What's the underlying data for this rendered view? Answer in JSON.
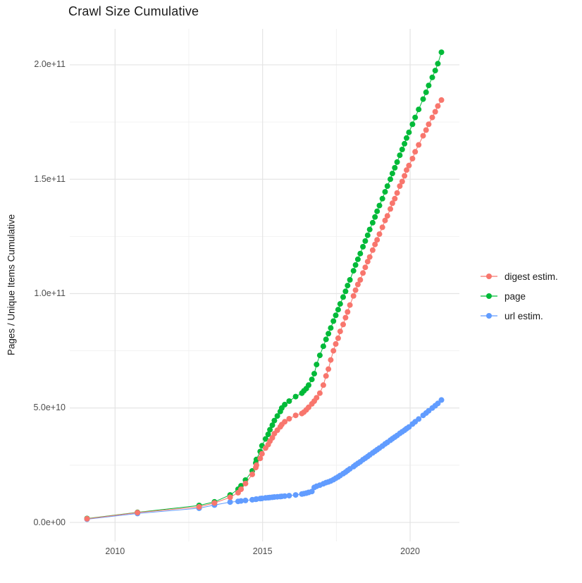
{
  "page": {
    "background": "#FFFFFF"
  },
  "chart_data": {
    "type": "scatter",
    "title": "Crawl Size Cumulative",
    "ylabel": "Pages / Unique Items Cumulative",
    "xlabel": "",
    "legend_position": "right",
    "grid": "on",
    "x_unit": "year (decimal)",
    "value_unit": "billions (1e9) of pages / unique items",
    "x_range": [
      2008.465,
      2021.67
    ],
    "y_range": [
      -8.3,
      215.7
    ],
    "x_ticks": [
      {
        "value": 2010,
        "label": "2010"
      },
      {
        "value": 2015,
        "label": "2015"
      },
      {
        "value": 2020,
        "label": "2020"
      }
    ],
    "x_minor_gridlines": [
      2012.5,
      2017.5
    ],
    "y_ticks": [
      {
        "value": 0,
        "label": "0.0e+00"
      },
      {
        "value": 50,
        "label": "5.0e+10"
      },
      {
        "value": 100,
        "label": "1.0e+11"
      },
      {
        "value": 150,
        "label": "1.5e+11"
      },
      {
        "value": 200,
        "label": "2.0e+11"
      }
    ],
    "y_minor_gridlines": [
      25,
      75,
      125,
      175
    ],
    "x": [
      2009.05,
      2010.76,
      2012.85,
      2013.37,
      2013.9,
      2014.17,
      2014.27,
      2014.42,
      2014.65,
      2014.77,
      2014.79,
      2014.92,
      2014.98,
      2015.1,
      2015.19,
      2015.25,
      2015.33,
      2015.4,
      2015.5,
      2015.6,
      2015.65,
      2015.75,
      2015.9,
      2016.12,
      2016.33,
      2016.4,
      2016.48,
      2016.56,
      2016.67,
      2016.75,
      2016.83,
      2016.94,
      2017.06,
      2017.15,
      2017.23,
      2017.31,
      2017.4,
      2017.48,
      2017.56,
      2017.63,
      2017.73,
      2017.81,
      2017.88,
      2017.96,
      2018.08,
      2018.15,
      2018.23,
      2018.31,
      2018.4,
      2018.48,
      2018.56,
      2018.63,
      2018.73,
      2018.81,
      2018.88,
      2018.96,
      2019.06,
      2019.15,
      2019.23,
      2019.33,
      2019.4,
      2019.48,
      2019.56,
      2019.65,
      2019.73,
      2019.81,
      2019.88,
      2019.96,
      2020.08,
      2020.17,
      2020.29,
      2020.44,
      2020.54,
      2020.63,
      2020.75,
      2020.85,
      2020.94,
      2021.06
    ],
    "series": [
      {
        "name": "digest estim.",
        "color": "#F8766D",
        "values": [
          1.6,
          4.3,
          6.8,
          8.5,
          11.0,
          13.0,
          14.5,
          17.0,
          21.0,
          24.0,
          25.0,
          28.0,
          30.0,
          32.5,
          34.0,
          35.5,
          37.0,
          38.8,
          40.3,
          41.8,
          42.8,
          44.0,
          45.3,
          46.8,
          47.6,
          48.2,
          49.2,
          50.3,
          51.8,
          53.0,
          54.5,
          56.5,
          60.0,
          64.0,
          67.0,
          71.0,
          75.0,
          78.0,
          80.5,
          83.5,
          86.5,
          89.5,
          92.0,
          95.0,
          99.0,
          101.5,
          104.0,
          106.0,
          109.0,
          111.5,
          114.0,
          116.0,
          119.0,
          121.5,
          123.5,
          126.0,
          129.0,
          132.0,
          134.0,
          137.0,
          139.5,
          141.5,
          144.0,
          147.0,
          149.0,
          151.5,
          154.0,
          156.0,
          159.0,
          162.0,
          165.0,
          169.0,
          171.5,
          174.0,
          177.0,
          179.5,
          182.0,
          184.6
        ]
      },
      {
        "name": "page",
        "color": "#00BA38",
        "values": [
          1.7,
          4.4,
          7.4,
          9.0,
          12.0,
          14.5,
          16.0,
          18.5,
          22.5,
          26.0,
          27.5,
          31.0,
          33.5,
          36.5,
          38.5,
          40.5,
          42.5,
          44.5,
          46.5,
          48.5,
          50.0,
          51.5,
          53.0,
          55.0,
          56.5,
          57.5,
          58.5,
          60.0,
          62.5,
          65.0,
          69.0,
          73.0,
          77.0,
          80.0,
          82.5,
          85.0,
          88.0,
          90.5,
          93.0,
          95.5,
          98.5,
          101.0,
          103.5,
          106.0,
          110.0,
          112.5,
          115.0,
          117.5,
          120.5,
          123.0,
          125.5,
          128.0,
          131.0,
          133.5,
          136.0,
          138.5,
          141.5,
          144.5,
          147.0,
          150.0,
          152.5,
          155.0,
          157.5,
          160.5,
          163.0,
          165.5,
          168.0,
          170.5,
          174.0,
          177.0,
          180.5,
          185.0,
          188.0,
          191.0,
          194.5,
          197.5,
          200.5,
          205.5
        ]
      },
      {
        "name": "url estim.",
        "color": "#619CFF",
        "values": [
          1.4,
          3.9,
          6.2,
          7.6,
          8.9,
          9.2,
          9.4,
          9.6,
          9.9,
          10.1,
          10.2,
          10.4,
          10.5,
          10.7,
          10.8,
          10.9,
          11.0,
          11.1,
          11.2,
          11.3,
          11.4,
          11.5,
          11.7,
          12.0,
          12.4,
          12.6,
          12.8,
          13.1,
          13.5,
          15.3,
          15.8,
          16.3,
          16.9,
          17.4,
          17.7,
          18.1,
          18.7,
          19.3,
          19.9,
          20.5,
          21.3,
          22.0,
          22.7,
          23.4,
          24.4,
          25.1,
          25.8,
          26.5,
          27.4,
          28.1,
          28.8,
          29.5,
          30.4,
          31.1,
          31.8,
          32.5,
          33.4,
          34.3,
          35.0,
          35.9,
          36.6,
          37.3,
          38.0,
          38.9,
          39.6,
          40.3,
          41.0,
          41.7,
          43.0,
          44.0,
          45.2,
          46.8,
          47.8,
          48.8,
          50.0,
          51.0,
          52.0,
          53.5
        ]
      }
    ],
    "colors": {
      "gridline_major": "#E4E4E4",
      "gridline_minor": "#EFEFEF",
      "axis_text": "#4D4D4D",
      "title_text": "#1A1A1A"
    }
  }
}
